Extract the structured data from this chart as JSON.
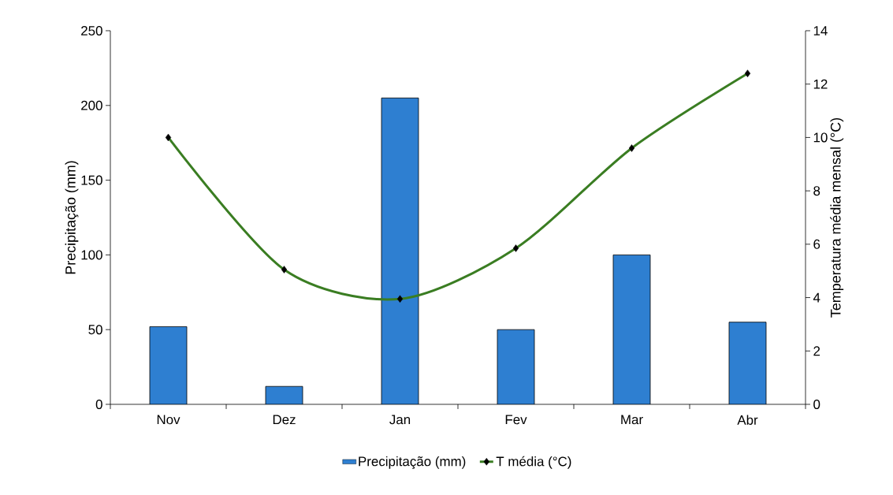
{
  "chart_data": {
    "type": "bar",
    "categories": [
      "Nov",
      "Dez",
      "Jan",
      "Fev",
      "Mar",
      "Abr"
    ],
    "ylabel": "Precipitação (mm)",
    "y2label": "Temperatura média mensal (°C)",
    "ylim": [
      0,
      250
    ],
    "yticks": [
      0,
      50,
      100,
      150,
      200,
      250
    ],
    "y2lim": [
      0,
      14
    ],
    "y2ticks": [
      0,
      2,
      4,
      6,
      8,
      10,
      12,
      14
    ],
    "legend": "bottom",
    "series": [
      {
        "name": "Precipitação (mm)",
        "color": "#2e7fd1",
        "values": [
          52,
          12,
          205,
          50,
          100,
          55
        ]
      },
      {
        "name": "T média (°C)",
        "type": "line",
        "axis": "y2",
        "color": "#3a7d22",
        "marker": "diamond",
        "values": [
          10.0,
          5.05,
          3.95,
          5.85,
          9.6,
          12.4
        ]
      }
    ]
  }
}
